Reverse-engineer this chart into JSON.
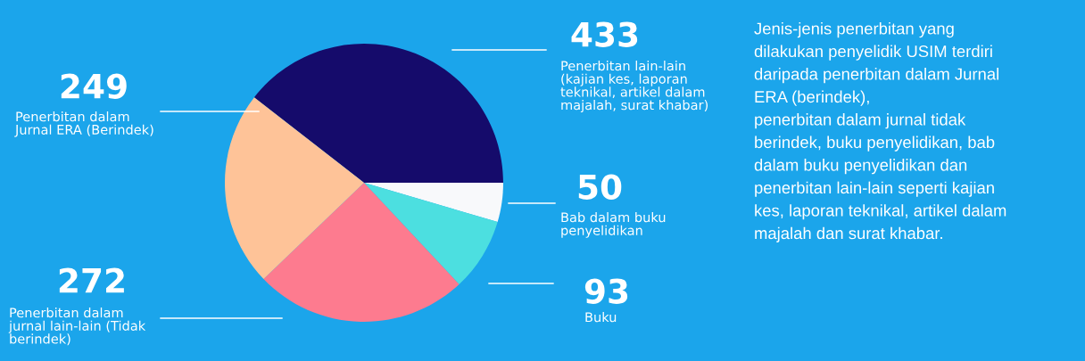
{
  "chart_data": {
    "type": "pie",
    "categories": [
      "Penerbitan lain-lain\n(kajian kes, laporan\nteknikal, artikel dalam\nmajalah, surat khabar)",
      "Bab dalam buku\npenyelidikan",
      "Buku",
      "Penerbitan dalam\njurnal lain-lain (Tidak\nberindek)",
      "Penerbitan dalam\nJurnal ERA (Berindek)"
    ],
    "values": [
      433,
      50,
      93,
      272,
      249
    ],
    "colors": [
      "#150b6b",
      "#f8f9fb",
      "#4cdfe0",
      "#fd7b8f",
      "#fec398"
    ],
    "data_labels": true,
    "annotations": [
      "Jenis-jenis penerbitan yang\ndilakukan penyelidik USIM terdiri\ndaripada penerbitan dalam Jurnal\nERA (berindek),\npenerbitan dalam jurnal tidak\nberindek, buku penyelidikan, bab\ndalam buku penyelidikan dan\npenerbitan lain-lain seperti kajian\nkes, laporan teknikal, artikel dalam\nmajalah dan surat khabar."
    ]
  }
}
